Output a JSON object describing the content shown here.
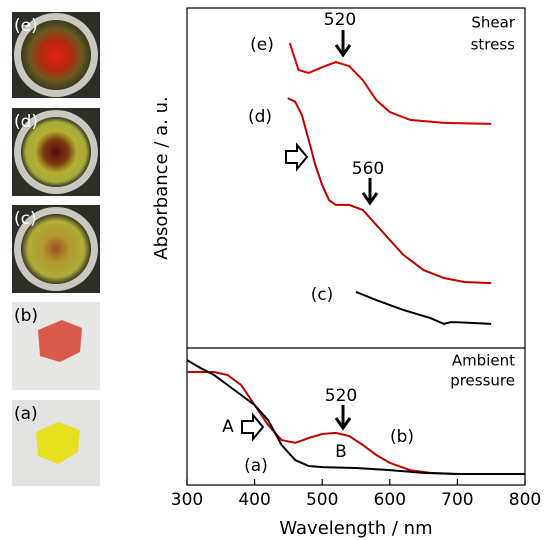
{
  "photos": [
    {
      "label": "(e)"
    },
    {
      "label": "(d)"
    },
    {
      "label": "(c)"
    },
    {
      "label": "(b)"
    },
    {
      "label": "(a)"
    }
  ],
  "chart_data": [
    {
      "type": "line",
      "title": [
        "Shear",
        "stress"
      ],
      "ylabel": "Absorbance / a. u.",
      "xlim": [
        300,
        800
      ],
      "ylim": [
        0,
        100
      ],
      "annotations": [
        "520",
        "560"
      ],
      "series": [
        {
          "name": "(e)",
          "color": "#d40000",
          "x": [
            452,
            465,
            480,
            500,
            520,
            540,
            560,
            580,
            600,
            630,
            680,
            750
          ],
          "values": [
            89.7,
            81.8,
            80.9,
            82.6,
            84.1,
            82.9,
            78.8,
            72.9,
            69.4,
            67.1,
            66.2,
            65.9
          ]
        },
        {
          "name": "(d)",
          "color": "#c00000",
          "x": [
            449,
            460,
            470,
            480,
            490,
            500,
            510,
            520,
            540,
            560,
            580,
            600,
            620,
            650,
            680,
            710,
            750
          ],
          "values": [
            73.5,
            72.4,
            68.5,
            61.2,
            53.8,
            47.9,
            43.5,
            42.1,
            42.1,
            40.6,
            36.2,
            31.8,
            27.4,
            22.9,
            20.6,
            19.4,
            19.1
          ]
        },
        {
          "name": "(c)",
          "color": "#000000",
          "x": [
            550,
            580,
            620,
            660,
            680,
            690,
            700,
            750
          ],
          "values": [
            16.5,
            14.1,
            11.2,
            8.8,
            7.1,
            7.6,
            7.6,
            7.1
          ]
        }
      ]
    },
    {
      "type": "line",
      "title": [
        "Ambient",
        "pressure"
      ],
      "xlabel": "Wavelength / nm",
      "xlim": [
        300,
        800
      ],
      "xticks": [
        300,
        400,
        500,
        600,
        700,
        800
      ],
      "ylim": [
        0,
        100
      ],
      "annotations": [
        "A",
        "520",
        "B"
      ],
      "series": [
        {
          "name": "(b)",
          "color": "#c00000",
          "x": [
            300,
            340,
            360,
            380,
            400,
            420,
            440,
            460,
            480,
            500,
            520,
            540,
            560,
            580,
            600,
            630,
            660,
            700,
            800
          ],
          "values": [
            82.5,
            82.5,
            80.3,
            73,
            58.4,
            43.8,
            32.8,
            30.7,
            34.3,
            37.2,
            38,
            35.8,
            29.2,
            21.9,
            16.1,
            10.9,
            8.8,
            8,
            8
          ]
        },
        {
          "name": "(a)",
          "color": "#000000",
          "x": [
            300,
            320,
            340,
            360,
            380,
            400,
            420,
            440,
            460,
            480,
            500,
            550,
            600,
            650,
            700,
            800
          ],
          "values": [
            91.2,
            85.4,
            80.3,
            73,
            65.7,
            58.4,
            47.4,
            29.2,
            18.2,
            13.9,
            13.1,
            12.4,
            10.9,
            8.8,
            8,
            8
          ]
        }
      ]
    }
  ]
}
